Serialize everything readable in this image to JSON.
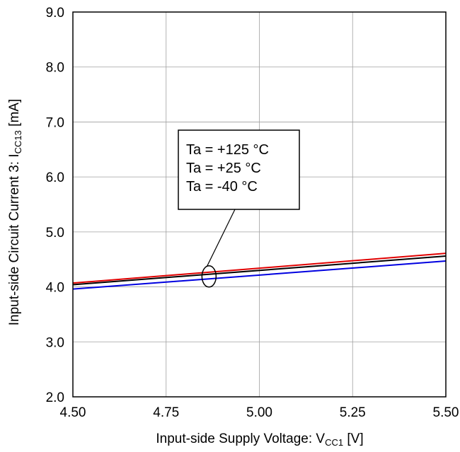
{
  "chart_data": {
    "type": "line",
    "xlabel": {
      "main": "Input-side Supply Voltage: V",
      "sub": "CC1",
      "unit": " [V]"
    },
    "ylabel": {
      "main": "Input-side Circuit Current 3: I",
      "sub": "CC13",
      "unit": " [mA]"
    },
    "xlim": [
      4.5,
      5.5
    ],
    "ylim": [
      2.0,
      9.0
    ],
    "x_ticks": [
      "4.50",
      "4.75",
      "5.00",
      "5.25",
      "5.50"
    ],
    "y_ticks": [
      "2.0",
      "3.0",
      "4.0",
      "5.0",
      "6.0",
      "7.0",
      "8.0",
      "9.0"
    ],
    "grid": true,
    "series": [
      {
        "name": "Ta = +125 °C",
        "color": "#e00000",
        "x": [
          4.5,
          5.5
        ],
        "y": [
          4.07,
          4.61
        ]
      },
      {
        "name": "Ta = +25 °C",
        "color": "#000000",
        "x": [
          4.5,
          5.5
        ],
        "y": [
          4.04,
          4.56
        ]
      },
      {
        "name": "Ta = -40 °C",
        "color": "#0000e0",
        "x": [
          4.5,
          5.5
        ],
        "y": [
          3.96,
          4.47
        ]
      }
    ],
    "annotation": {
      "lines": [
        "Ta = +125 °C",
        "Ta = +25 °C",
        "Ta = -40 °C"
      ],
      "target_x": 4.865,
      "target_y": 4.19
    }
  }
}
